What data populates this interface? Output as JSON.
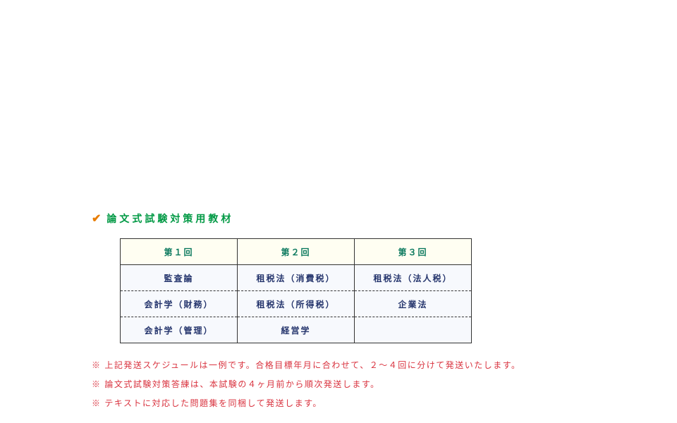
{
  "section": {
    "title": "論文式試験対策用教材"
  },
  "table": {
    "headers": [
      "第１回",
      "第２回",
      "第３回"
    ],
    "rows": [
      [
        "監査論",
        "租税法（消費税）",
        "租税法（法人税）"
      ],
      [
        "会計学（財務）",
        "租税法（所得税）",
        "企業法"
      ],
      [
        "会計学（管理）",
        "経営学",
        ""
      ]
    ],
    "header_color": "#0d7a5f",
    "header_bg": "#fffef2",
    "cell_color": "#25356d",
    "cell_bg": "#f7f9fd",
    "border_color": "#333333"
  },
  "notes": [
    "※ 上記発送スケジュールは一例です。合格目標年月に合わせて、２〜４回に分けて発送いたします。",
    "※ 論文式試験対策答練は、本試験の４ヶ月前から順次発送します。",
    "※ テキストに対応した問題集を同梱して発送します。"
  ],
  "colors": {
    "title_color": "#009944",
    "check_color": "#e87c00",
    "note_color": "#d9333f",
    "background": "#ffffff"
  }
}
